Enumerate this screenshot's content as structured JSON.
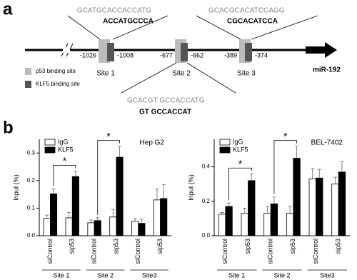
{
  "diagram": {
    "label": "a",
    "gene": "miR-192",
    "sites": [
      {
        "name": "Site 1",
        "start": "-1026",
        "end": "-1008",
        "p53_seq": "GCATGCACCACCATG",
        "klf5_seq": "ACCATGCCCA"
      },
      {
        "name": "Site 2",
        "start": "-677",
        "end": "-662",
        "p53_seq": "GCACGT GCCACCATG",
        "klf5_seq": "GT GCCACCAT"
      },
      {
        "name": "Site 3",
        "start": "-389",
        "end": "-374",
        "p53_seq": "GCACGCACATCCAGG",
        "klf5_seq": "CGCACATCCA"
      }
    ],
    "legend": [
      "p53 binding site",
      "KLF5 binding site"
    ]
  },
  "panel_b_label": "b",
  "chart_data": [
    {
      "type": "bar",
      "title": "Hep G2",
      "y_label": "Input (%)",
      "categories": [
        "siControl",
        "sip53",
        "siControl",
        "sip53",
        "siControl",
        "sip53"
      ],
      "groups": [
        "Site 1",
        "Site 2",
        "Site3"
      ],
      "series": [
        {
          "name": "IgG",
          "color": "#ffffff",
          "values": [
            0.063,
            0.065,
            0.047,
            0.068,
            0.052,
            0.13
          ],
          "errors": [
            0.012,
            0.02,
            0.01,
            0.028,
            0.01,
            0.04
          ]
        },
        {
          "name": "KLF5",
          "color": "#000000",
          "values": [
            0.152,
            0.215,
            0.055,
            0.285,
            0.045,
            0.135
          ],
          "errors": [
            0.018,
            0.02,
            0.01,
            0.04,
            0.015,
            0.05
          ]
        }
      ],
      "significance": [
        "*",
        "*"
      ],
      "ylim": [
        0,
        0.35
      ],
      "yticks": [
        {
          "value": 0,
          "label": "0.0"
        },
        0.1,
        0.2,
        0.3
      ],
      "legend": "upper-left"
    },
    {
      "type": "bar",
      "title": "BEL-7402",
      "y_label": "Input (%)",
      "categories": [
        "siControl",
        "sip53",
        "siControl",
        "sip53",
        "siControl",
        "sip53"
      ],
      "groups": [
        "Site 1",
        "Site 2",
        "Site3"
      ],
      "series": [
        {
          "name": "IgG",
          "color": "#ffffff",
          "values": [
            0.125,
            0.13,
            0.13,
            0.13,
            0.33,
            0.3
          ],
          "errors": [
            0.01,
            0.03,
            0.04,
            0.04,
            0.06,
            0.04
          ]
        },
        {
          "name": "KLF5",
          "color": "#000000",
          "values": [
            0.17,
            0.32,
            0.185,
            0.45,
            0.335,
            0.37
          ],
          "errors": [
            0.02,
            0.04,
            0.04,
            0.07,
            0.05,
            0.06
          ]
        }
      ],
      "significance": [
        "*",
        "*"
      ],
      "ylim": [
        0,
        0.56
      ],
      "yticks": [
        {
          "value": 0,
          "label": "0.0"
        },
        0.2,
        0.4
      ],
      "legend": "upper-left"
    }
  ]
}
